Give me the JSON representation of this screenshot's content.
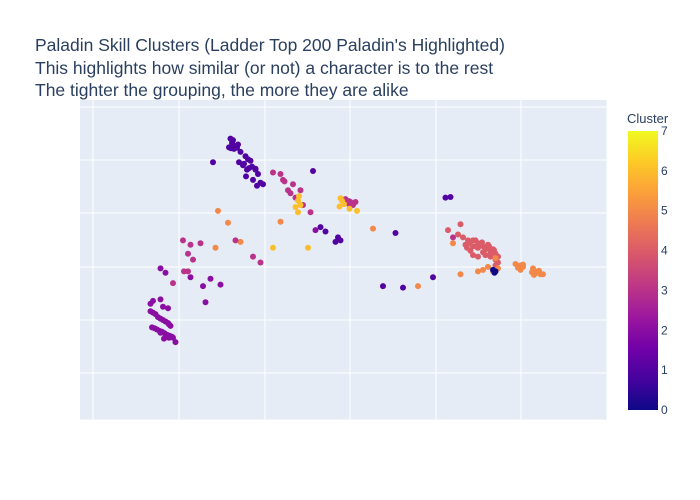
{
  "chart_data": {
    "type": "scatter",
    "title": "Paladin Skill Clusters (Ladder Top 200 Paladin's Highlighted)",
    "subtitle_lines": [
      "This highlights how similar (or not) a character is to the rest",
      "The tighter the grouping, the more they are alike"
    ],
    "colorbar": {
      "title": "Cluster",
      "min": 0,
      "max": 7,
      "ticks": [
        "0",
        "1",
        "2",
        "3",
        "4",
        "5",
        "6",
        "7"
      ]
    },
    "grid": true,
    "axes_tick_labels_visible": false,
    "xlim": [
      0,
      100
    ],
    "ylim": [
      0,
      100
    ],
    "points": [
      [
        27.5,
        92,
        1
      ],
      [
        28,
        91.5,
        1
      ],
      [
        27.8,
        90.5,
        1
      ],
      [
        28.5,
        89.5,
        1
      ],
      [
        29,
        90,
        1
      ],
      [
        27.2,
        89,
        1
      ],
      [
        28.2,
        88.5,
        1
      ],
      [
        29.5,
        87.5,
        1
      ],
      [
        30.5,
        86,
        1
      ],
      [
        31,
        85,
        1
      ],
      [
        31.5,
        84.5,
        1
      ],
      [
        30.2,
        83.5,
        1
      ],
      [
        31.8,
        82.5,
        1
      ],
      [
        32.5,
        81.5,
        1
      ],
      [
        33,
        80,
        1
      ],
      [
        30.8,
        81.5,
        1
      ],
      [
        32,
        78,
        1
      ],
      [
        33.5,
        77,
        1
      ],
      [
        34,
        76.5,
        1
      ],
      [
        32.8,
        76,
        1
      ],
      [
        24,
        84,
        1
      ],
      [
        29.2,
        84,
        1
      ],
      [
        30,
        83,
        1
      ],
      [
        31.2,
        82,
        1
      ],
      [
        32.5,
        81.8,
        1
      ],
      [
        44,
        81,
        1
      ],
      [
        27.6,
        88.7,
        1
      ],
      [
        28.8,
        88.9,
        1
      ],
      [
        30.6,
        79.2,
        1
      ],
      [
        37.5,
        80,
        3
      ],
      [
        38,
        78,
        3
      ],
      [
        38.3,
        77.5,
        3
      ],
      [
        40,
        76.5,
        3
      ],
      [
        39,
        74.5,
        3
      ],
      [
        41.5,
        74.5,
        3
      ],
      [
        39.5,
        73.5,
        3
      ],
      [
        40.5,
        72,
        3
      ],
      [
        42,
        69.5,
        3
      ],
      [
        43.5,
        67,
        3
      ],
      [
        36,
        80.5,
        3
      ],
      [
        44.5,
        61,
        2
      ],
      [
        45.5,
        62,
        1
      ],
      [
        46.5,
        60.5,
        1
      ],
      [
        50,
        71,
        3
      ],
      [
        50.5,
        71.5,
        3
      ],
      [
        51,
        70,
        3
      ],
      [
        51.5,
        70.5,
        3
      ],
      [
        52.5,
        70.5,
        3
      ],
      [
        52,
        69.5,
        3
      ],
      [
        51.2,
        70.8,
        3
      ],
      [
        49.5,
        71.8,
        6
      ],
      [
        49.8,
        71,
        6
      ],
      [
        50.2,
        69.8,
        6
      ],
      [
        49.3,
        69,
        6
      ],
      [
        51.3,
        68.2,
        6
      ],
      [
        52.8,
        67.5,
        6
      ],
      [
        41,
        71,
        6
      ],
      [
        41.5,
        69.5,
        6
      ],
      [
        41,
        67,
        6
      ],
      [
        40.5,
        68.8,
        6
      ],
      [
        41.2,
        72.5,
        6
      ],
      [
        25,
        67.5,
        5
      ],
      [
        27,
        63.5,
        5
      ],
      [
        37.5,
        63.8,
        5
      ],
      [
        29.5,
        57,
        5
      ],
      [
        43,
        55,
        6
      ],
      [
        28.5,
        57.5,
        3
      ],
      [
        48.5,
        57,
        1
      ],
      [
        49.5,
        57.5,
        1
      ],
      [
        49,
        58.5,
        1
      ],
      [
        56,
        61.5,
        5
      ],
      [
        72,
        58.5,
        3
      ],
      [
        74,
        58.5,
        4
      ],
      [
        75,
        57.5,
        4
      ],
      [
        76,
        57.5,
        4
      ],
      [
        77,
        56.5,
        4
      ],
      [
        76,
        55.5,
        4
      ],
      [
        77,
        55,
        4
      ],
      [
        78,
        55.5,
        4
      ],
      [
        79,
        56,
        4
      ],
      [
        79,
        55,
        4
      ],
      [
        80,
        54.5,
        4
      ],
      [
        79.5,
        53.5,
        4
      ],
      [
        78,
        53.5,
        4
      ],
      [
        78.5,
        52.5,
        4
      ],
      [
        79.5,
        52,
        4
      ],
      [
        80.5,
        53,
        4
      ],
      [
        81,
        52,
        4
      ],
      [
        80.5,
        51,
        4
      ],
      [
        81,
        50,
        4
      ],
      [
        80.5,
        49,
        4
      ],
      [
        76,
        52.5,
        4
      ],
      [
        77,
        52,
        4
      ],
      [
        75.5,
        54,
        4
      ],
      [
        74.5,
        56,
        4
      ],
      [
        73,
        59.5,
        4
      ],
      [
        71,
        61,
        4
      ],
      [
        73.5,
        63,
        4
      ],
      [
        76.5,
        57.5,
        4
      ],
      [
        77.5,
        55.8,
        4
      ],
      [
        78.5,
        54.5,
        4
      ],
      [
        79.2,
        55.5,
        4
      ],
      [
        77.8,
        56.8,
        4
      ],
      [
        76.8,
        55.2,
        4
      ],
      [
        80.2,
        54.2,
        4
      ],
      [
        74.8,
        55,
        4
      ],
      [
        75.2,
        56.6,
        4
      ],
      [
        72,
        56.5,
        5
      ],
      [
        80.5,
        51.5,
        5
      ],
      [
        79,
        48.5,
        5
      ],
      [
        78,
        47.5,
        5
      ],
      [
        77,
        47,
        5
      ],
      [
        73.5,
        46,
        5
      ],
      [
        81,
        48,
        5
      ],
      [
        80,
        47,
        5
      ],
      [
        65,
        42,
        5
      ],
      [
        84.5,
        49.5,
        5
      ],
      [
        85.5,
        49,
        5
      ],
      [
        86,
        48.5,
        5
      ],
      [
        85.5,
        47.5,
        5
      ],
      [
        88,
        48,
        5
      ],
      [
        88.5,
        47,
        5
      ],
      [
        89,
        46.5,
        5
      ],
      [
        89.5,
        46,
        5
      ],
      [
        88.2,
        45.8,
        5
      ],
      [
        87.8,
        46.7,
        5
      ],
      [
        89.2,
        47.2,
        5
      ],
      [
        90,
        46,
        5
      ],
      [
        86,
        49.3,
        5
      ],
      [
        85,
        48.2,
        5
      ],
      [
        80,
        47.5,
        0
      ],
      [
        80.5,
        47,
        0
      ],
      [
        80.3,
        46.5,
        0
      ],
      [
        68,
        45,
        1
      ],
      [
        58,
        42,
        1
      ],
      [
        62,
        41.5,
        1
      ],
      [
        70.5,
        72,
        1
      ],
      [
        71.5,
        72.2,
        1
      ],
      [
        60.5,
        60,
        1
      ],
      [
        18,
        57.5,
        3
      ],
      [
        19.5,
        56,
        3
      ],
      [
        21.5,
        56.5,
        3
      ],
      [
        19,
        53,
        3
      ],
      [
        20,
        51,
        3
      ],
      [
        18.2,
        47,
        3
      ],
      [
        19.5,
        45,
        2
      ],
      [
        23.5,
        44.5,
        2
      ],
      [
        22,
        42,
        2
      ],
      [
        25.5,
        42.5,
        2
      ],
      [
        13.5,
        37.5,
        2
      ],
      [
        14,
        35,
        2
      ],
      [
        15,
        34.5,
        2
      ],
      [
        22.5,
        36.5,
        2
      ],
      [
        13.5,
        48,
        2
      ],
      [
        14.5,
        46.5,
        2
      ],
      [
        12,
        37,
        2
      ],
      [
        11.5,
        36,
        2
      ],
      [
        11.5,
        33.5,
        2
      ],
      [
        12,
        33,
        2
      ],
      [
        12.5,
        32.5,
        2
      ],
      [
        13,
        31.5,
        2
      ],
      [
        13.5,
        31,
        2
      ],
      [
        14,
        30.5,
        2
      ],
      [
        14.5,
        30,
        2
      ],
      [
        15,
        29.5,
        2
      ],
      [
        15.2,
        29,
        2
      ],
      [
        15.5,
        28.5,
        2
      ],
      [
        11.8,
        28,
        2
      ],
      [
        12.3,
        27.7,
        2
      ],
      [
        12.8,
        27.3,
        2
      ],
      [
        13.3,
        26.8,
        2
      ],
      [
        13.8,
        26.5,
        2
      ],
      [
        14.3,
        26,
        2
      ],
      [
        14.8,
        25.5,
        2
      ],
      [
        15.3,
        25.2,
        2
      ],
      [
        15.8,
        24.8,
        2
      ],
      [
        15.2,
        24.5,
        2
      ],
      [
        14.2,
        24.2,
        2
      ],
      [
        13.5,
        26.2,
        2
      ],
      [
        16,
        24.5,
        2
      ],
      [
        16.5,
        23,
        2
      ],
      [
        24.5,
        55,
        5
      ],
      [
        36,
        55,
        6
      ],
      [
        32,
        52,
        3
      ],
      [
        33.5,
        50,
        3
      ],
      [
        19,
        47,
        3
      ],
      [
        16,
        43,
        3
      ]
    ]
  }
}
